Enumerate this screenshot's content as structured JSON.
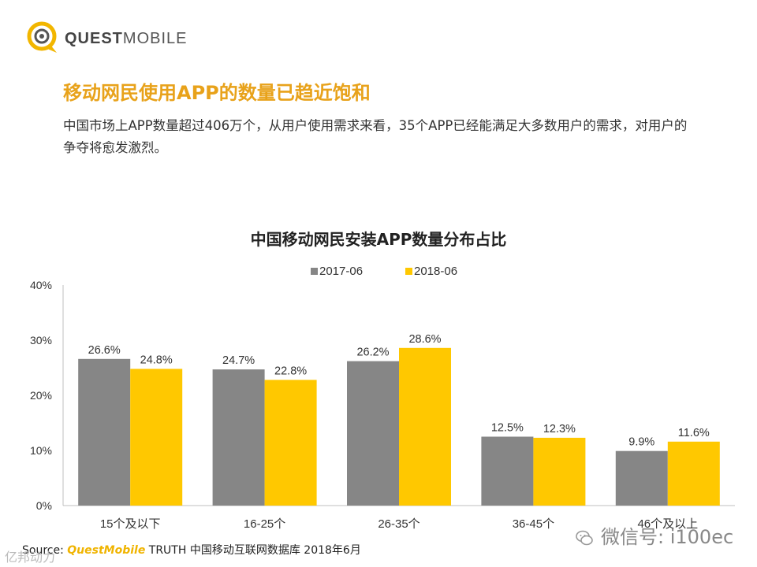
{
  "brand": {
    "logo_text_bold": "QUEST",
    "logo_text_light": "MOBILE"
  },
  "headline": "移动网民使用APP的数量已趋近饱和",
  "subtext": "中国市场上APP数量超过406万个，从用户使用需求来看，35个APP已经能满足大多数用户的需求，对用户的争夺将愈发激烈。",
  "colors": {
    "accent": "#e8a21a",
    "series_2017": "#868686",
    "series_2018": "#ffc800"
  },
  "chart_data": {
    "type": "bar",
    "title": "中国移动网民安装APP数量分布占比",
    "categories": [
      "15个及以下",
      "16-25个",
      "26-35个",
      "36-45个",
      "46个及以上"
    ],
    "series": [
      {
        "name": "2017-06",
        "values": [
          26.6,
          24.7,
          26.2,
          12.5,
          9.9
        ],
        "labels": [
          "26.6%",
          "24.7%",
          "26.2%",
          "12.5%",
          "9.9%"
        ]
      },
      {
        "name": "2018-06",
        "values": [
          24.8,
          22.8,
          28.6,
          12.3,
          11.6
        ],
        "labels": [
          "24.8%",
          "22.8%",
          "28.6%",
          "12.3%",
          "11.6%"
        ]
      }
    ],
    "ylim": [
      0,
      40
    ],
    "yticks": [
      0,
      10,
      20,
      30,
      40
    ],
    "ytick_labels": [
      "0%",
      "10%",
      "20%",
      "30%",
      "40%"
    ],
    "legend_position": "top-center",
    "grid": false
  },
  "source": {
    "label": "Source:",
    "brand": "QuestMobile",
    "text": "TRUTH 中国移动互联网数据库 2018年6月"
  },
  "watermark": {
    "text": "微信号: i100ec"
  },
  "corner_mark": "亿邦动力"
}
